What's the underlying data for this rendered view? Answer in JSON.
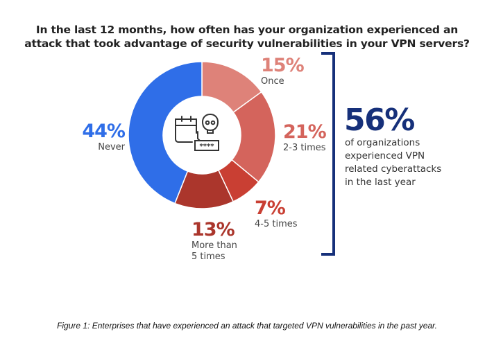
{
  "title_line1": "In the last 12 months, how often has your organization experienced an",
  "title_line2": "attack that took advantage of security vulnerabilities in your VPN servers?",
  "center_icon": "calendar-skull-password-icon",
  "labels": {
    "once": {
      "pct": "15%",
      "text": "Once"
    },
    "two_three": {
      "pct": "21%",
      "text": "2-3 times"
    },
    "four_five": {
      "pct": "7%",
      "text": "4-5 times"
    },
    "more_than_five": {
      "pct": "13%",
      "text_line1": "More than",
      "text_line2": "5 times"
    },
    "never": {
      "pct": "44%",
      "text": "Never"
    }
  },
  "summary": {
    "value": "56%",
    "lines": [
      "of organizations",
      "experienced VPN",
      "related cyberattacks",
      "in the last year"
    ]
  },
  "caption": "Figure 1: Enterprises that have experienced an attack that targeted VPN vulnerabilities in the past year.",
  "colors": {
    "once": "#de8279",
    "two_three": "#d4645c",
    "four_five": "#c93f33",
    "more_than_five": "#ab362c",
    "never": "#2f6ee8",
    "summary": "#16307a"
  },
  "chart_data": {
    "type": "pie",
    "variant": "donut",
    "title": "In the last 12 months, how often has your organization experienced an attack that took advantage of security vulnerabilities in your VPN servers?",
    "categories": [
      "Once",
      "2-3 times",
      "4-5 times",
      "More than 5 times",
      "Never"
    ],
    "values": [
      15,
      21,
      7,
      13,
      44
    ],
    "unit": "%",
    "colors": [
      "#de8279",
      "#d4645c",
      "#c93f33",
      "#ab362c",
      "#2f6ee8"
    ],
    "start_angle": "12 o'clock, clockwise",
    "annotation": "56% of organizations experienced VPN related cyberattacks in the last year",
    "bracket_groups": [
      "Once",
      "2-3 times",
      "4-5 times",
      "More than 5 times"
    ],
    "legend": "none (direct labels)"
  }
}
